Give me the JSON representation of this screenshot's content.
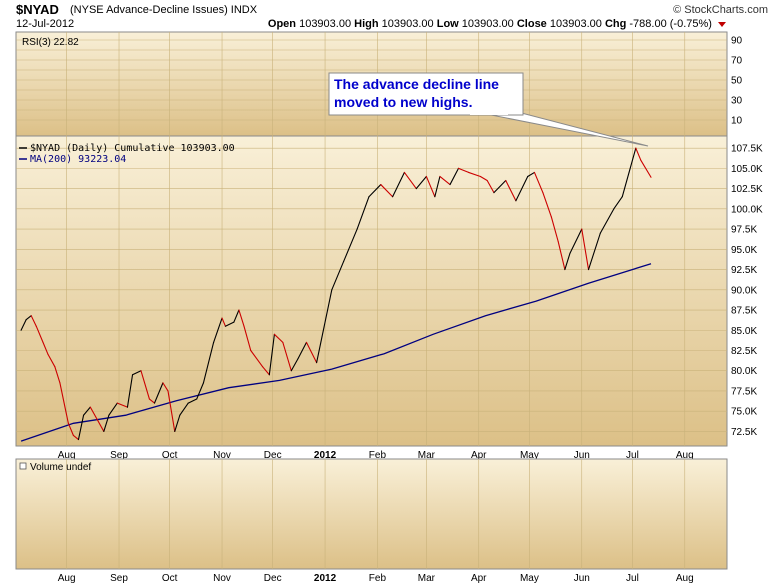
{
  "header": {
    "symbol": "$NYAD",
    "description": "(NYSE Advance-Decline Issues)",
    "exchange": "INDX",
    "date": "12-Jul-2012",
    "brand": "© StockCharts.com",
    "open_label": "Open",
    "open_value": "103903.00",
    "high_label": "High",
    "high_value": "103903.00",
    "low_label": "Low",
    "low_value": "103903.00",
    "close_label": "Close",
    "close_value": "103903.00",
    "chg_label": "Chg",
    "chg_value": "-788.00 (-0.75%)"
  },
  "panels": {
    "rsi_label": "RSI(3) 22.82",
    "rsi_ticks": [
      "90",
      "70",
      "50",
      "30",
      "10"
    ],
    "legend_main": "$NYAD (Daily) Cumulative 103903.00",
    "legend_ma": "MA(200) 93223.04",
    "volume_label": "Volume undef"
  },
  "annotation": {
    "line1": "The advance decline line",
    "line2": "moved to new highs."
  },
  "colors": {
    "panel_bg_top": "#f9f0d8",
    "panel_bg_bottom": "#dcc087",
    "rising": "#000000",
    "falling": "#cc0000",
    "ma": "#000080",
    "annotation_text": "#0000cc"
  },
  "chart_data": {
    "type": "line",
    "title": "$NYAD (NYSE Advance-Decline Issues) INDX",
    "ylim": [
      70700,
      109000
    ],
    "y_ticks": [
      "72.5K",
      "75.0K",
      "77.5K",
      "80.0K",
      "82.5K",
      "85.0K",
      "87.5K",
      "90.0K",
      "92.5K",
      "95.0K",
      "97.5K",
      "100.0K",
      "102.5K",
      "105.0K",
      "107.5K"
    ],
    "x_tick_labels": [
      "Aug",
      "Sep",
      "Oct",
      "Nov",
      "Dec",
      "2012",
      "Feb",
      "Mar",
      "Apr",
      "May",
      "Jun",
      "Jul",
      "Aug"
    ],
    "x_tick_dates": [
      "2011-08-01",
      "2011-09-01",
      "2011-10-01",
      "2011-11-01",
      "2011-12-01",
      "2012-01-01",
      "2012-02-01",
      "2012-03-01",
      "2012-04-01",
      "2012-05-01",
      "2012-06-01",
      "2012-07-01",
      "2012-08-01"
    ],
    "series": [
      {
        "name": "$NYAD (Daily) Cumulative",
        "x": [
          "2011-07-05",
          "2011-07-08",
          "2011-07-11",
          "2011-07-14",
          "2011-07-18",
          "2011-07-21",
          "2011-07-25",
          "2011-07-28",
          "2011-08-02",
          "2011-08-05",
          "2011-08-08",
          "2011-08-11",
          "2011-08-15",
          "2011-08-19",
          "2011-08-23",
          "2011-08-26",
          "2011-08-31",
          "2011-09-06",
          "2011-09-09",
          "2011-09-14",
          "2011-09-19",
          "2011-09-22",
          "2011-09-27",
          "2011-09-30",
          "2011-10-04",
          "2011-10-07",
          "2011-10-12",
          "2011-10-17",
          "2011-10-21",
          "2011-10-27",
          "2011-11-01",
          "2011-11-03",
          "2011-11-08",
          "2011-11-11",
          "2011-11-14",
          "2011-11-18",
          "2011-11-25",
          "2011-11-29",
          "2011-12-02",
          "2011-12-07",
          "2011-12-12",
          "2011-12-16",
          "2011-12-21",
          "2011-12-27",
          "2012-01-05",
          "2012-01-12",
          "2012-01-20",
          "2012-01-27",
          "2012-02-03",
          "2012-02-10",
          "2012-02-17",
          "2012-02-24",
          "2012-03-01",
          "2012-03-06",
          "2012-03-09",
          "2012-03-15",
          "2012-03-20",
          "2012-03-26",
          "2012-04-02",
          "2012-04-06",
          "2012-04-10",
          "2012-04-17",
          "2012-04-23",
          "2012-04-30",
          "2012-05-04",
          "2012-05-09",
          "2012-05-14",
          "2012-05-18",
          "2012-05-22",
          "2012-05-25",
          "2012-06-01",
          "2012-06-05",
          "2012-06-12",
          "2012-06-20",
          "2012-06-25",
          "2012-06-29",
          "2012-07-03",
          "2012-07-06",
          "2012-07-12"
        ],
        "values": [
          85000,
          86300,
          86800,
          85500,
          83500,
          82000,
          80500,
          78500,
          73500,
          72000,
          71500,
          74500,
          75500,
          74000,
          72500,
          74500,
          76000,
          75500,
          79500,
          80000,
          76500,
          76000,
          78500,
          77500,
          72500,
          74500,
          76000,
          76500,
          78500,
          83500,
          86500,
          85500,
          86000,
          87500,
          85500,
          82500,
          80500,
          79500,
          84500,
          83500,
          80000,
          81500,
          83500,
          81000,
          90000,
          93500,
          97500,
          101500,
          103000,
          101500,
          104500,
          102500,
          104000,
          101500,
          104000,
          103000,
          105000,
          104500,
          104000,
          103500,
          102000,
          103500,
          101000,
          104000,
          104500,
          102000,
          99000,
          96000,
          92500,
          94500,
          97500,
          92500,
          97000,
          100000,
          101500,
          104500,
          107500,
          106000,
          103900
        ]
      },
      {
        "name": "MA(200)",
        "x": [
          "2011-07-05",
          "2011-08-05",
          "2011-09-05",
          "2011-10-05",
          "2011-11-05",
          "2011-12-05",
          "2012-01-05",
          "2012-02-05",
          "2012-03-05",
          "2012-04-05",
          "2012-05-05",
          "2012-06-05",
          "2012-07-12"
        ],
        "values": [
          71300,
          73500,
          74500,
          76300,
          77900,
          78800,
          80200,
          82100,
          84500,
          86800,
          88600,
          90800,
          93223
        ]
      }
    ],
    "annotations": [
      "The advance decline line",
      "moved to new highs."
    ]
  }
}
